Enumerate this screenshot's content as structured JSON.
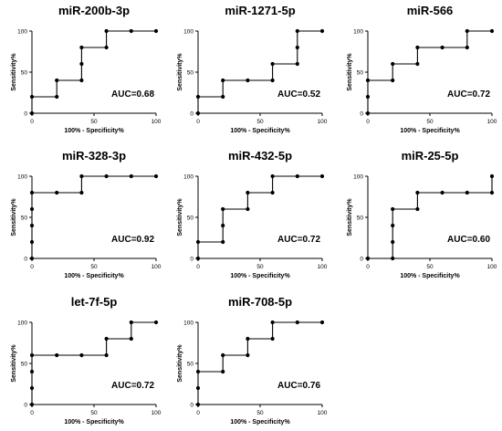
{
  "figure": {
    "xlabel": "100% - Specificity%",
    "ylabel": "Sensitivity%",
    "ticks": [
      "0",
      "50",
      "100"
    ]
  },
  "chart_data": [
    {
      "type": "line",
      "title": "miR-200b-3p",
      "annotation": "AUC=0.68",
      "xlabel": "100% - Specificity%",
      "ylabel": "Sensitivity%",
      "xlim": [
        0,
        100
      ],
      "ylim": [
        0,
        100
      ],
      "x": [
        0,
        0,
        20,
        20,
        40,
        40,
        40,
        60,
        60,
        80,
        100
      ],
      "y": [
        0,
        20,
        20,
        40,
        40,
        60,
        80,
        80,
        100,
        100,
        100
      ]
    },
    {
      "type": "line",
      "title": "miR-1271-5p",
      "annotation": "AUC=0.52",
      "xlabel": "100% - Specificity%",
      "ylabel": "Sensitivity%",
      "xlim": [
        0,
        100
      ],
      "ylim": [
        0,
        100
      ],
      "x": [
        0,
        0,
        20,
        20,
        40,
        60,
        60,
        80,
        80,
        80,
        100
      ],
      "y": [
        0,
        20,
        20,
        40,
        40,
        40,
        60,
        60,
        80,
        100,
        100
      ]
    },
    {
      "type": "line",
      "title": "miR-566",
      "annotation": "AUC=0.72",
      "xlabel": "100% - Specificity%",
      "ylabel": "Sensitivity%",
      "xlim": [
        0,
        100
      ],
      "ylim": [
        0,
        100
      ],
      "x": [
        0,
        0,
        0,
        20,
        20,
        40,
        40,
        60,
        80,
        80,
        100
      ],
      "y": [
        0,
        20,
        40,
        40,
        60,
        60,
        80,
        80,
        80,
        100,
        100
      ]
    },
    {
      "type": "line",
      "title": "miR-328-3p",
      "annotation": "AUC=0.92",
      "xlabel": "100% - Specificity%",
      "ylabel": "Sensitivity%",
      "xlim": [
        0,
        100
      ],
      "ylim": [
        0,
        100
      ],
      "x": [
        0,
        0,
        0,
        0,
        0,
        20,
        40,
        40,
        60,
        80,
        100
      ],
      "y": [
        0,
        20,
        40,
        60,
        80,
        80,
        80,
        100,
        100,
        100,
        100
      ]
    },
    {
      "type": "line",
      "title": "miR-432-5p",
      "annotation": "AUC=0.72",
      "xlabel": "100% - Specificity%",
      "ylabel": "Sensitivity%",
      "xlim": [
        0,
        100
      ],
      "ylim": [
        0,
        100
      ],
      "x": [
        0,
        0,
        20,
        20,
        20,
        40,
        40,
        60,
        60,
        80,
        100
      ],
      "y": [
        0,
        20,
        20,
        40,
        60,
        60,
        80,
        80,
        100,
        100,
        100
      ]
    },
    {
      "type": "line",
      "title": "miR-25-5p",
      "annotation": "AUC=0.60",
      "xlabel": "100% - Specificity%",
      "ylabel": "Sensitivity%",
      "xlim": [
        0,
        100
      ],
      "ylim": [
        0,
        100
      ],
      "x": [
        0,
        20,
        20,
        20,
        20,
        40,
        40,
        60,
        80,
        100,
        100
      ],
      "y": [
        0,
        0,
        20,
        40,
        60,
        60,
        80,
        80,
        80,
        80,
        100
      ]
    },
    {
      "type": "line",
      "title": "let-7f-5p",
      "annotation": "AUC=0.72",
      "xlabel": "100% - Specificity%",
      "ylabel": "Sensitivity%",
      "xlim": [
        0,
        100
      ],
      "ylim": [
        0,
        100
      ],
      "x": [
        0,
        0,
        0,
        0,
        20,
        40,
        60,
        60,
        80,
        80,
        100
      ],
      "y": [
        0,
        20,
        40,
        60,
        60,
        60,
        60,
        80,
        80,
        100,
        100
      ]
    },
    {
      "type": "line",
      "title": "miR-708-5p",
      "annotation": "AUC=0.76",
      "xlabel": "100% - Specificity%",
      "ylabel": "Sensitivity%",
      "xlim": [
        0,
        100
      ],
      "ylim": [
        0,
        100
      ],
      "x": [
        0,
        0,
        0,
        20,
        20,
        40,
        40,
        60,
        60,
        80,
        100
      ],
      "y": [
        0,
        20,
        40,
        40,
        60,
        60,
        80,
        80,
        100,
        100,
        100
      ]
    }
  ]
}
